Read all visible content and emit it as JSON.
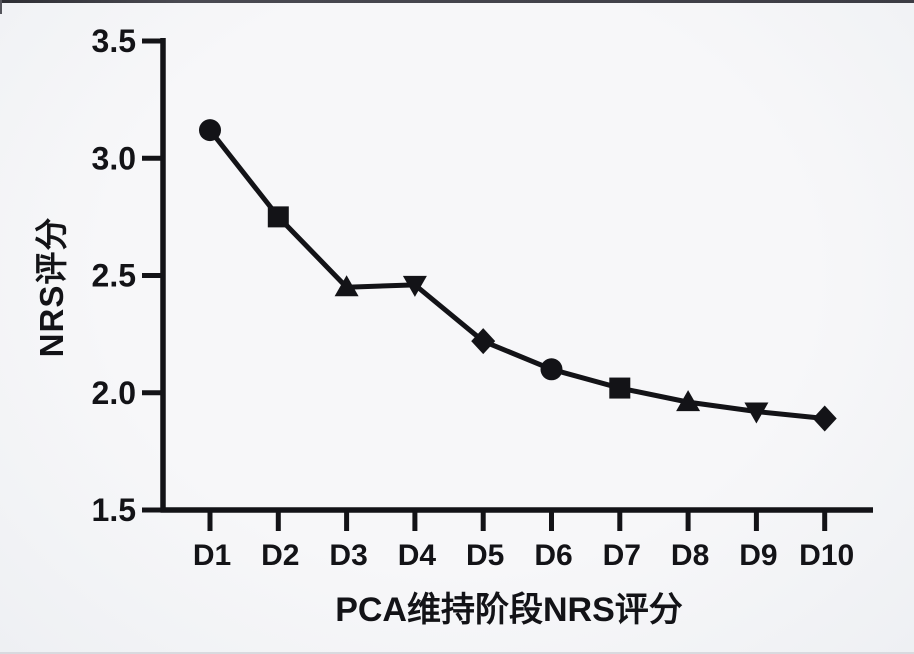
{
  "figure": {
    "ink_color": "#131317",
    "background_color": "#f4f5f7"
  },
  "chart_data": {
    "type": "line",
    "title": "",
    "xlabel": "PCA维持阶段NRS评分",
    "ylabel": "NRS评分",
    "categories": [
      "D1",
      "D2",
      "D3",
      "D4",
      "D5",
      "D6",
      "D7",
      "D8",
      "D9",
      "D10"
    ],
    "series": [
      {
        "name": "NRS",
        "values": [
          3.12,
          2.75,
          2.45,
          2.46,
          2.22,
          2.1,
          2.02,
          1.96,
          1.92,
          1.89
        ],
        "color": "#131317",
        "markers": [
          "circle",
          "square",
          "triangle-up",
          "triangle-down",
          "diamond",
          "circle",
          "square",
          "triangle-up",
          "triangle-down",
          "diamond"
        ]
      }
    ],
    "ylim": [
      1.5,
      3.5
    ],
    "yticks": [
      1.5,
      2.0,
      2.5,
      3.0,
      3.5
    ],
    "ytick_labels": [
      "1.5",
      "2.0",
      "2.5",
      "3.0",
      "3.5"
    ],
    "grid": false,
    "legend": "none",
    "line_width": 5
  }
}
